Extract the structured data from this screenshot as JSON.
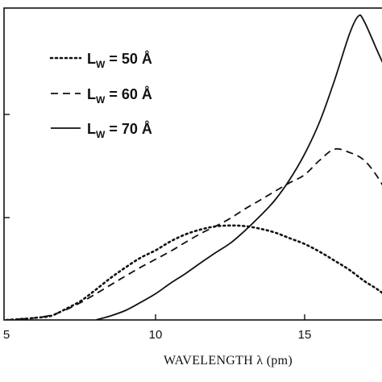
{
  "chart_data": {
    "type": "line",
    "title": "",
    "xlabel": "WAVELENGTH λ (pm)",
    "ylabel": "",
    "xlim": [
      5,
      18.2
    ],
    "ylim": [
      0,
      1
    ],
    "grid": false,
    "legend_placement": "top-left",
    "x_ticks": [
      5,
      10,
      15
    ],
    "x_tick_labels": [
      "5",
      "10",
      "15"
    ],
    "series": [
      {
        "name_prefix": "L",
        "name_sub": "W",
        "name_suffix": " = 50 Å",
        "style": "dotted",
        "x": [
          5.0,
          5.5,
          6.0,
          6.5,
          7.0,
          7.5,
          8.0,
          8.5,
          9.0,
          9.5,
          10.0,
          10.5,
          11.0,
          11.5,
          12.0,
          12.5,
          13.0,
          13.5,
          14.0,
          14.5,
          15.0,
          15.5,
          16.0,
          16.5,
          17.0,
          17.5,
          18.0,
          18.2
        ],
        "y": [
          0.0,
          0.003,
          0.007,
          0.013,
          0.035,
          0.06,
          0.095,
          0.132,
          0.165,
          0.195,
          0.218,
          0.246,
          0.268,
          0.283,
          0.293,
          0.296,
          0.294,
          0.286,
          0.274,
          0.256,
          0.238,
          0.214,
          0.186,
          0.157,
          0.122,
          0.092,
          0.053,
          0.04
        ]
      },
      {
        "name_prefix": "L",
        "name_sub": "W",
        "name_suffix": " = 60 Å",
        "style": "dashed",
        "x": [
          5.0,
          5.5,
          6.0,
          6.5,
          7.0,
          7.5,
          8.0,
          8.5,
          9.0,
          9.5,
          10.0,
          10.5,
          11.0,
          11.5,
          12.0,
          12.5,
          13.0,
          13.5,
          14.0,
          14.5,
          15.0,
          15.5,
          16.0,
          16.5,
          17.0,
          17.5,
          18.0,
          18.2
        ],
        "y": [
          0.0,
          0.003,
          0.007,
          0.015,
          0.032,
          0.055,
          0.082,
          0.11,
          0.138,
          0.165,
          0.19,
          0.215,
          0.243,
          0.27,
          0.293,
          0.318,
          0.348,
          0.375,
          0.403,
          0.43,
          0.455,
          0.5,
          0.535,
          0.525,
          0.5,
          0.44,
          0.355,
          0.31
        ]
      },
      {
        "name_prefix": "L",
        "name_sub": "W",
        "name_suffix": " = 70 Å",
        "style": "solid",
        "x": [
          8.0,
          8.5,
          9.0,
          9.5,
          10.0,
          10.5,
          11.0,
          11.5,
          12.0,
          12.5,
          13.0,
          13.5,
          14.0,
          14.5,
          15.0,
          15.5,
          16.0,
          16.5,
          16.8,
          17.0,
          17.5,
          18.0,
          18.2
        ],
        "y": [
          0.0,
          0.013,
          0.03,
          0.055,
          0.082,
          0.115,
          0.145,
          0.178,
          0.21,
          0.24,
          0.28,
          0.325,
          0.375,
          0.44,
          0.52,
          0.62,
          0.75,
          0.895,
          0.952,
          0.935,
          0.83,
          0.73,
          0.72
        ]
      }
    ]
  }
}
